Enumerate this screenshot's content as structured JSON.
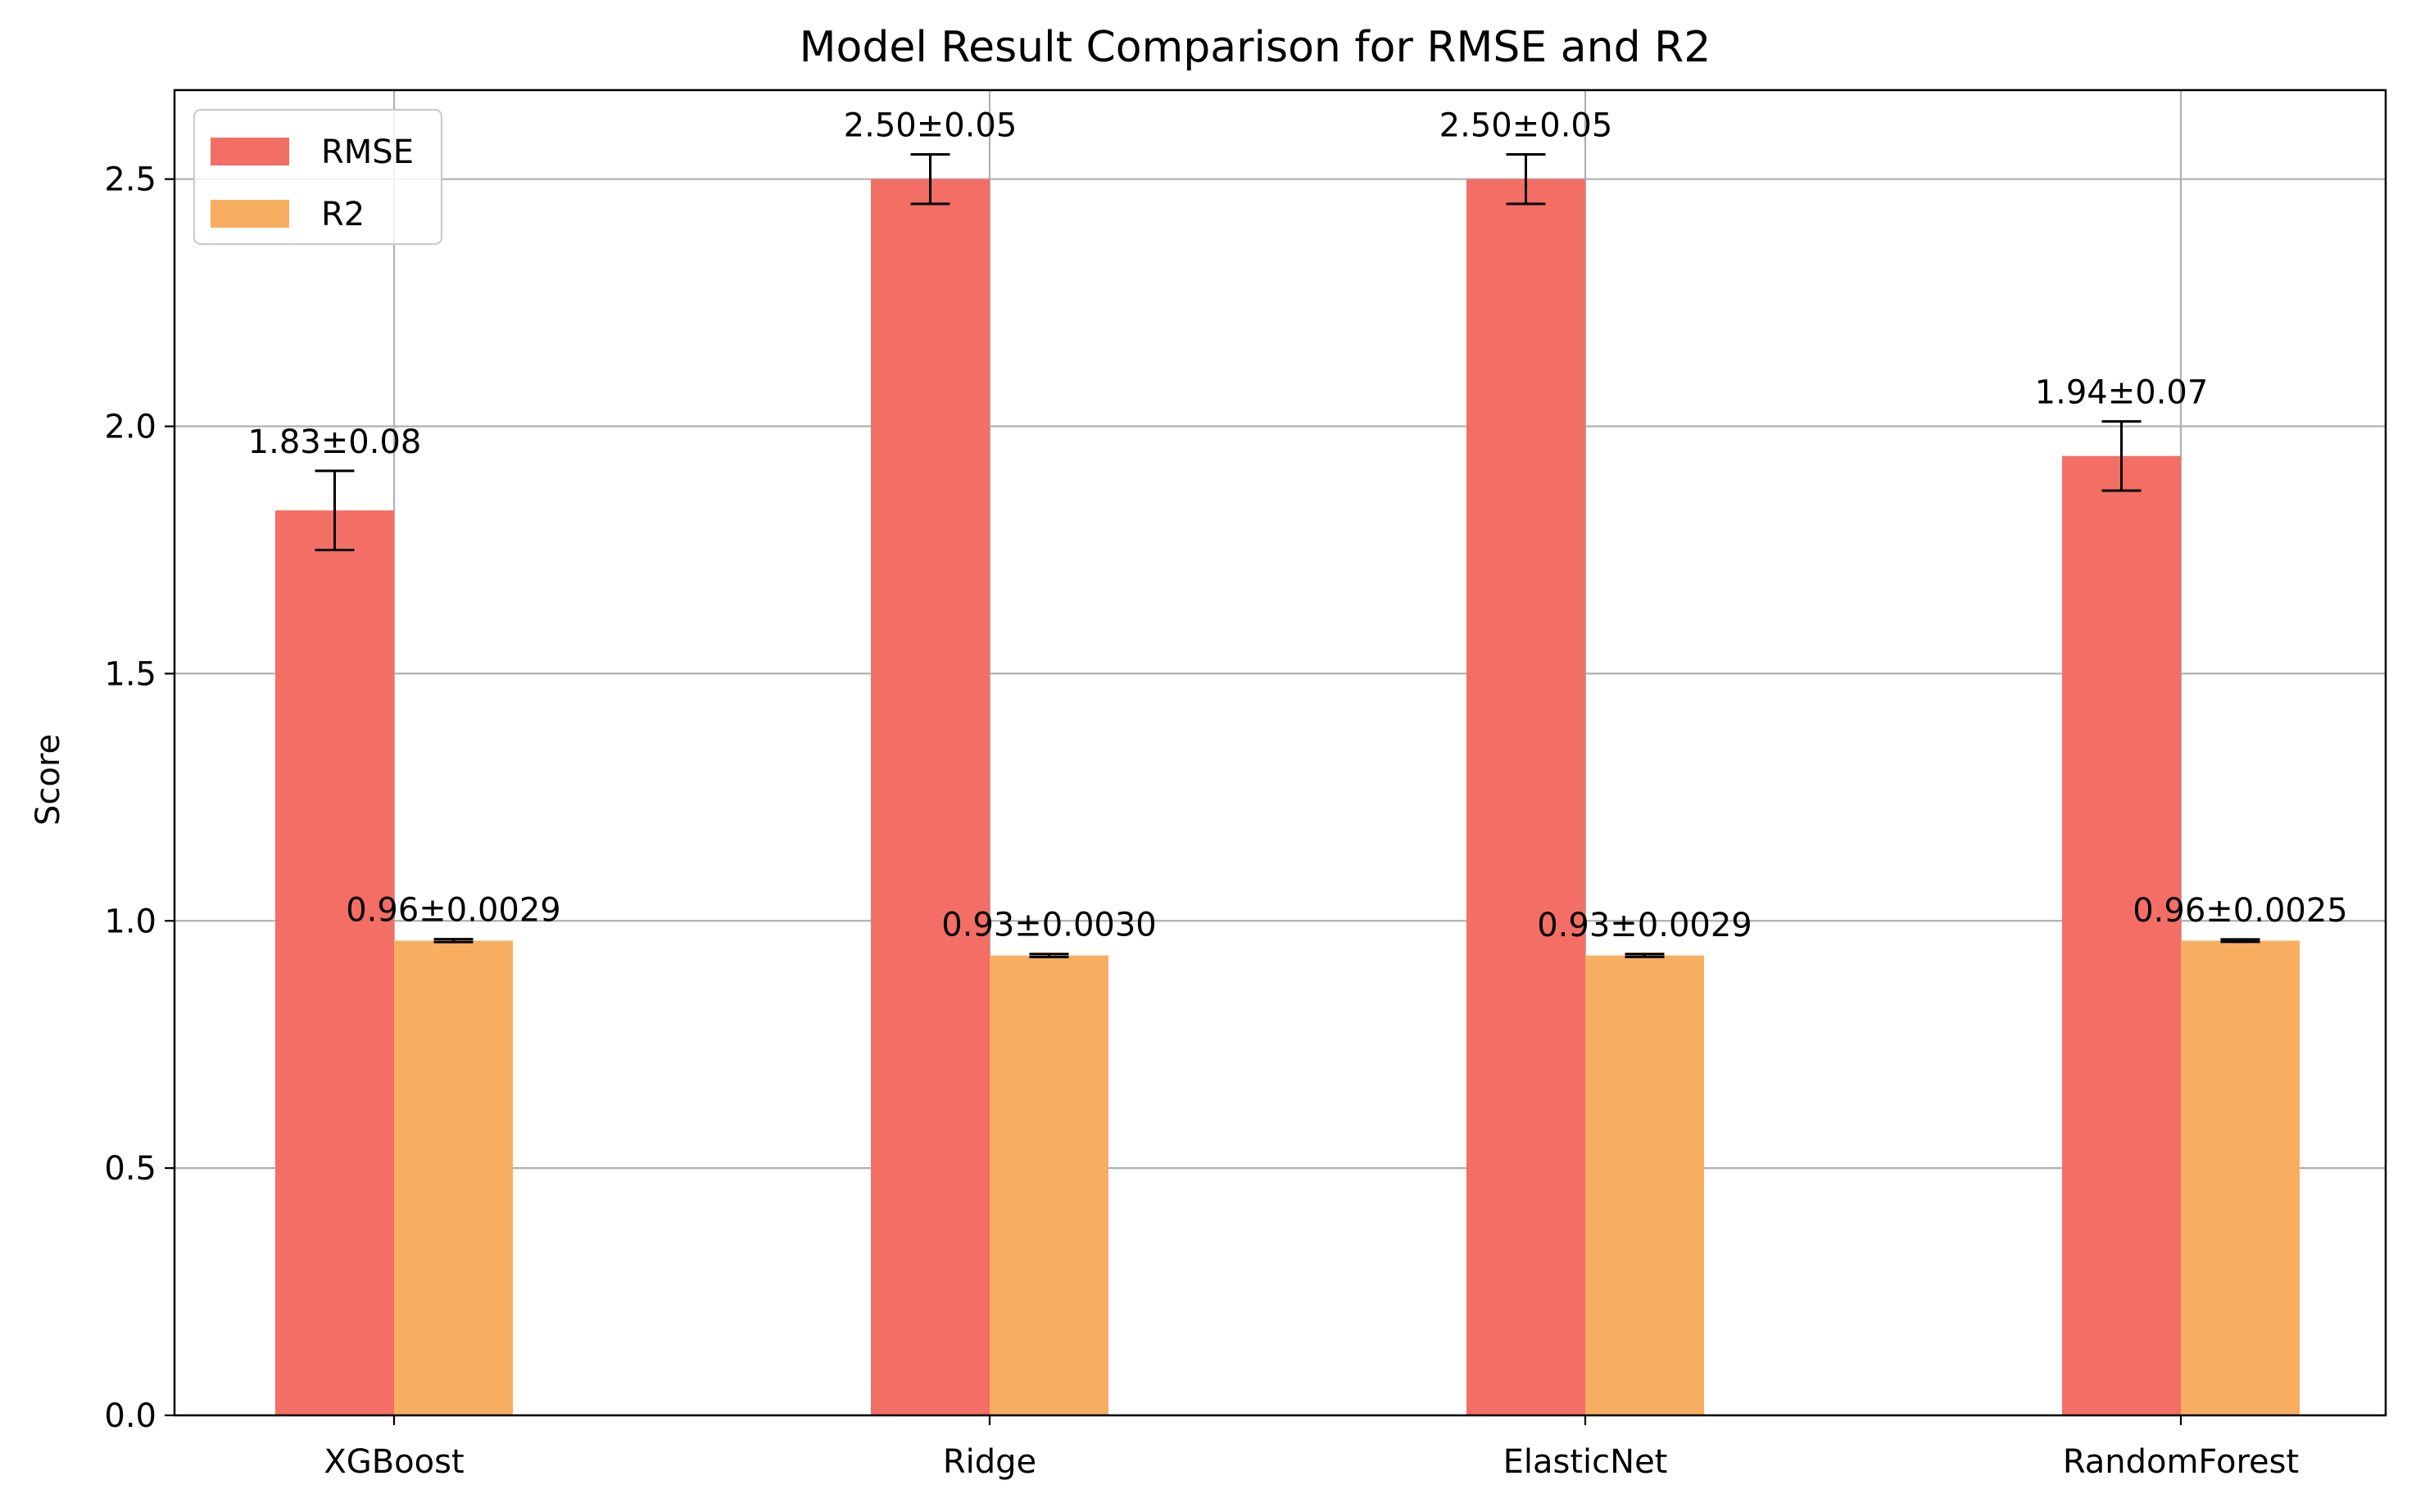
{
  "chart_data": {
    "type": "bar",
    "title": "Model Result Comparison for RMSE and R2",
    "xlabel": "",
    "ylabel": "Score",
    "categories": [
      "XGBoost",
      "Ridge",
      "ElasticNet",
      "RandomForest"
    ],
    "ylim": [
      0,
      2.68
    ],
    "yticks": [
      "0.0",
      "0.5",
      "1.0",
      "1.5",
      "2.0",
      "2.5"
    ],
    "grid": true,
    "legend_position": "upper-left",
    "series": [
      {
        "name": "RMSE",
        "color": "#f36e64",
        "values": [
          1.83,
          2.5,
          2.5,
          1.94
        ],
        "errors": [
          0.08,
          0.05,
          0.05,
          0.07
        ],
        "labels": [
          "1.83±0.08",
          "2.50±0.05",
          "2.50±0.05",
          "1.94±0.07"
        ]
      },
      {
        "name": "R2",
        "color": "#f8ae61",
        "values": [
          0.96,
          0.93,
          0.93,
          0.96
        ],
        "errors": [
          0.0029,
          0.003,
          0.0029,
          0.0025
        ],
        "labels": [
          "0.96±0.0029",
          "0.93±0.0030",
          "0.93±0.0029",
          "0.96±0.0025"
        ]
      }
    ]
  }
}
